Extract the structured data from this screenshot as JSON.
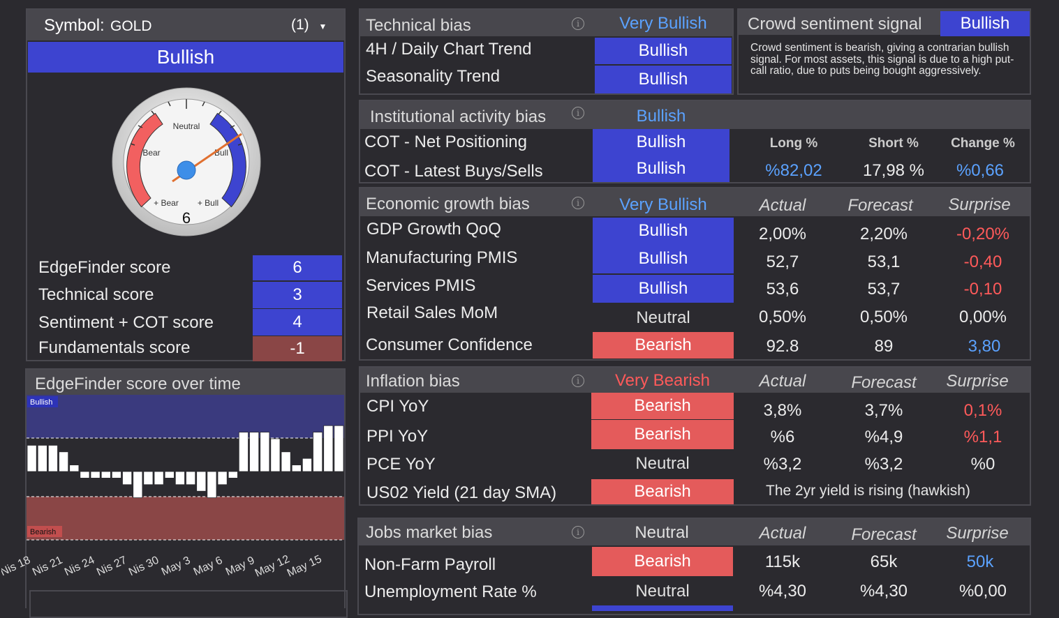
{
  "symbol_panel": {
    "symbol_label": "Symbol:",
    "symbol_value": "GOLD",
    "count": "(1)",
    "overall_bias": "Bullish",
    "gauge": {
      "neutral": "Neutral",
      "bear": "Bear",
      "bull": "Bull",
      "plus_bear": "+ Bear",
      "plus_bull": "+ Bull",
      "value": "6"
    },
    "scores": [
      {
        "label": "EdgeFinder score",
        "value": "6"
      },
      {
        "label": "Technical score",
        "value": "3"
      },
      {
        "label": "Sentiment + COT score",
        "value": "4"
      },
      {
        "label": "Fundamentals score",
        "value": "-1"
      }
    ]
  },
  "history_panel": {
    "title": "EdgeFinder score over time",
    "bullish_label": "Bullish",
    "bearish_label": "Bearish",
    "dates": [
      "Nis 18",
      "Nis 21",
      "Nis 24",
      "Nis 27",
      "Nis 30",
      "May 3",
      "May 6",
      "May 9",
      "May 12",
      "May 15"
    ],
    "scores": [
      4,
      4,
      4,
      3,
      1,
      -1,
      -1,
      -1,
      -1,
      -2,
      -4,
      -2,
      -2,
      -1,
      -2,
      -2,
      -3,
      -4,
      -2,
      -1,
      6,
      6,
      6,
      5,
      3,
      1,
      2,
      6,
      7,
      7
    ]
  },
  "technical": {
    "title": "Technical bias",
    "bias": "Very Bullish",
    "rows": [
      {
        "label": "4H / Daily Chart Trend",
        "bias": "Bullish"
      },
      {
        "label": "Seasonality Trend",
        "bias": "Bullish"
      }
    ]
  },
  "crowd": {
    "title": "Crowd sentiment signal",
    "bias": "Bullish",
    "text": "Crowd sentiment is bearish, giving a contrarian bullish signal. For most assets, this signal is due to a high put-call ratio, due to puts being bought aggressively."
  },
  "institutional": {
    "title": "Institutional activity bias",
    "bias": "Bullish",
    "rows": [
      {
        "label": "COT - Net Positioning",
        "bias": "Bullish"
      },
      {
        "label": "COT - Latest Buys/Sells",
        "bias": "Bullish"
      }
    ],
    "columns": [
      "Long %",
      "Short %",
      "Change %"
    ],
    "values": [
      "%82,02",
      "17,98 %",
      "%0,66"
    ]
  },
  "economic": {
    "title": "Economic growth bias",
    "bias": "Very Bullish",
    "columns": [
      "Actual",
      "Forecast",
      "Surprise"
    ],
    "rows": [
      {
        "label": "GDP Growth QoQ",
        "bias": "Bullish",
        "actual": "2,00%",
        "forecast": "2,20%",
        "surprise": "-0,20%"
      },
      {
        "label": "Manufacturing PMIS",
        "bias": "Bullish",
        "actual": "52,7",
        "forecast": "53,1",
        "surprise": "-0,40"
      },
      {
        "label": "Services PMIS",
        "bias": "Bullish",
        "actual": "53,6",
        "forecast": "53,7",
        "surprise": "-0,10"
      },
      {
        "label": "Retail Sales MoM",
        "bias": "Neutral",
        "actual": "0,50%",
        "forecast": "0,50%",
        "surprise": "0,00%"
      },
      {
        "label": "Consumer Confidence",
        "bias": "Bearish",
        "actual": "92.8",
        "forecast": "89",
        "surprise": "3,80"
      }
    ]
  },
  "inflation": {
    "title": "Inflation bias",
    "bias": "Very Bearish",
    "columns": [
      "Actual",
      "Forecast",
      "Surprise"
    ],
    "rows": [
      {
        "label": "CPI YoY",
        "bias": "Bearish",
        "actual": "3,8%",
        "forecast": "3,7%",
        "surprise": "0,1%"
      },
      {
        "label": "PPI YoY",
        "bias": "Bearish",
        "actual": "%6",
        "forecast": "%4,9",
        "surprise": "%1,1"
      },
      {
        "label": "PCE YoY",
        "bias": "Neutral",
        "actual": "%3,2",
        "forecast": "%3,2",
        "surprise": "%0"
      },
      {
        "label": "US02 Yield (21 day SMA)",
        "bias": "Bearish",
        "note": "The 2yr yield is rising (hawkish)"
      }
    ]
  },
  "jobs": {
    "title": "Jobs market bias",
    "bias": "Neutral",
    "columns": [
      "Actual",
      "Forecast",
      "Surprise"
    ],
    "rows": [
      {
        "label": "Non-Farm Payroll",
        "bias": "Bearish",
        "actual": "115k",
        "forecast": "65k",
        "surprise": "50k"
      },
      {
        "label": "Unemployment Rate %",
        "bias": "Neutral",
        "actual": "%4,30",
        "forecast": "%4,30",
        "surprise": "%0,00"
      }
    ]
  },
  "colors": {
    "bullish": "#3d44d0",
    "bearish": "#e45b5b",
    "negative_score": "#8a4646",
    "positive_text": "#5ba2ff",
    "negative_text": "#ff5a5a",
    "background": "#2b2a2f"
  }
}
